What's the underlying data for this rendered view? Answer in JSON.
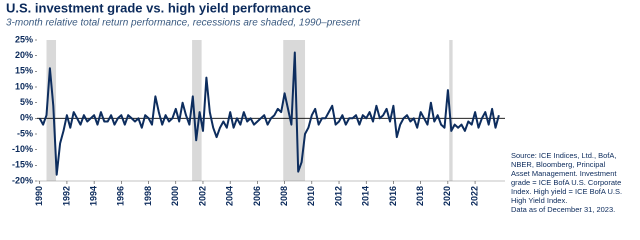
{
  "chart_data": {
    "type": "line",
    "title": "U.S. investment grade vs. high yield performance",
    "subtitle": "3-month relative total return performance, recessions are shaded, 1990–present",
    "color": "#0d2d5e",
    "recession_color": "#d9d9d9",
    "recessions": [
      [
        1990.5,
        1991.2
      ],
      [
        2001.2,
        2001.9
      ],
      [
        2007.9,
        2009.5
      ],
      [
        2020.1,
        2020.35
      ]
    ],
    "x": [
      1990,
      1990.25,
      1990.5,
      1990.75,
      1991,
      1991.25,
      1991.5,
      1991.75,
      1992,
      1992.25,
      1992.5,
      1992.75,
      1993,
      1993.25,
      1993.5,
      1993.75,
      1994,
      1994.25,
      1994.5,
      1994.75,
      1995,
      1995.25,
      1995.5,
      1995.75,
      1996,
      1996.25,
      1996.5,
      1996.75,
      1997,
      1997.25,
      1997.5,
      1997.75,
      1998,
      1998.25,
      1998.5,
      1998.75,
      1999,
      1999.25,
      1999.5,
      1999.75,
      2000,
      2000.25,
      2000.5,
      2000.75,
      2001,
      2001.25,
      2001.5,
      2001.75,
      2002,
      2002.25,
      2002.5,
      2002.75,
      2003,
      2003.25,
      2003.5,
      2003.75,
      2004,
      2004.25,
      2004.5,
      2004.75,
      2005,
      2005.25,
      2005.5,
      2005.75,
      2006,
      2006.25,
      2006.5,
      2006.75,
      2007,
      2007.25,
      2007.5,
      2007.75,
      2008,
      2008.25,
      2008.5,
      2008.75,
      2009,
      2009.25,
      2009.5,
      2009.75,
      2010,
      2010.25,
      2010.5,
      2010.75,
      2011,
      2011.25,
      2011.5,
      2011.75,
      2012,
      2012.25,
      2012.5,
      2012.75,
      2013,
      2013.25,
      2013.5,
      2013.75,
      2014,
      2014.25,
      2014.5,
      2014.75,
      2015,
      2015.25,
      2015.5,
      2015.75,
      2016,
      2016.25,
      2016.5,
      2016.75,
      2017,
      2017.25,
      2017.5,
      2017.75,
      2018,
      2018.25,
      2018.5,
      2018.75,
      2019,
      2019.25,
      2019.5,
      2019.75,
      2020,
      2020.25,
      2020.5,
      2020.75,
      2021,
      2021.25,
      2021.5,
      2021.75,
      2022,
      2022.25,
      2022.5,
      2022.75,
      2023,
      2023.25,
      2023.5,
      2023.75
    ],
    "values": [
      0,
      -2,
      1,
      16,
      4,
      -18,
      -8,
      -4,
      1,
      -3,
      2,
      0,
      -2,
      1,
      -1,
      0,
      1,
      -2,
      2,
      -1,
      -1,
      1,
      -2,
      0,
      1,
      -2,
      1,
      0,
      -1,
      0,
      -3,
      1,
      0,
      -2,
      7,
      2,
      -2,
      1,
      -1,
      0,
      3,
      -1,
      5,
      1,
      -2,
      7,
      -7,
      2,
      -4,
      13,
      2,
      -3,
      -6,
      -3,
      -1,
      -3,
      2,
      -3,
      0,
      -2,
      2,
      -1,
      0,
      -2,
      -1,
      0,
      1,
      -2,
      0,
      1,
      3,
      2,
      8,
      3,
      -2,
      21,
      -17,
      -14,
      -5,
      -3,
      1,
      3,
      -2,
      0,
      0,
      2,
      4,
      -2,
      -1,
      1,
      -2,
      0,
      0,
      1,
      -2,
      1,
      0,
      2,
      -1,
      4,
      0,
      1,
      3,
      -1,
      4,
      -6,
      -2,
      0,
      1,
      -1,
      0,
      -3,
      2,
      0,
      -2,
      5,
      -1,
      1,
      -2,
      -3,
      9,
      -4,
      -2,
      -3,
      -2,
      -4,
      -1,
      -2,
      2,
      -3,
      0,
      2,
      -2,
      3,
      -3,
      1
    ],
    "xlim": [
      1989.8,
      2024.2
    ],
    "ylim": [
      -20,
      25
    ],
    "yticks": [
      {
        "value": 25,
        "label": "25%"
      },
      {
        "value": 20,
        "label": "20%"
      },
      {
        "value": 15,
        "label": "15%"
      },
      {
        "value": 10,
        "label": "10%"
      },
      {
        "value": 5,
        "label": "5%"
      },
      {
        "value": 0,
        "label": "0%"
      },
      {
        "value": -5,
        "label": "-5%"
      },
      {
        "value": -10,
        "label": "-10%"
      },
      {
        "value": -15,
        "label": "-15%"
      },
      {
        "value": -20,
        "label": "-20%"
      }
    ],
    "xticks": [
      1990,
      1992,
      1994,
      1996,
      1998,
      2000,
      2002,
      2004,
      2006,
      2008,
      2010,
      2012,
      2014,
      2016,
      2018,
      2020,
      2022
    ],
    "source": [
      "Source: ICE Indices, Ltd., BofA,",
      "NBER, Bloomberg, Principal",
      "Asset Management. Investment",
      "grade = ICE BofA U.S. Corporate",
      "Index. High yield = ICE BofA U.S.",
      "High Yield Index.",
      "Data as of December 31, 2023."
    ]
  }
}
